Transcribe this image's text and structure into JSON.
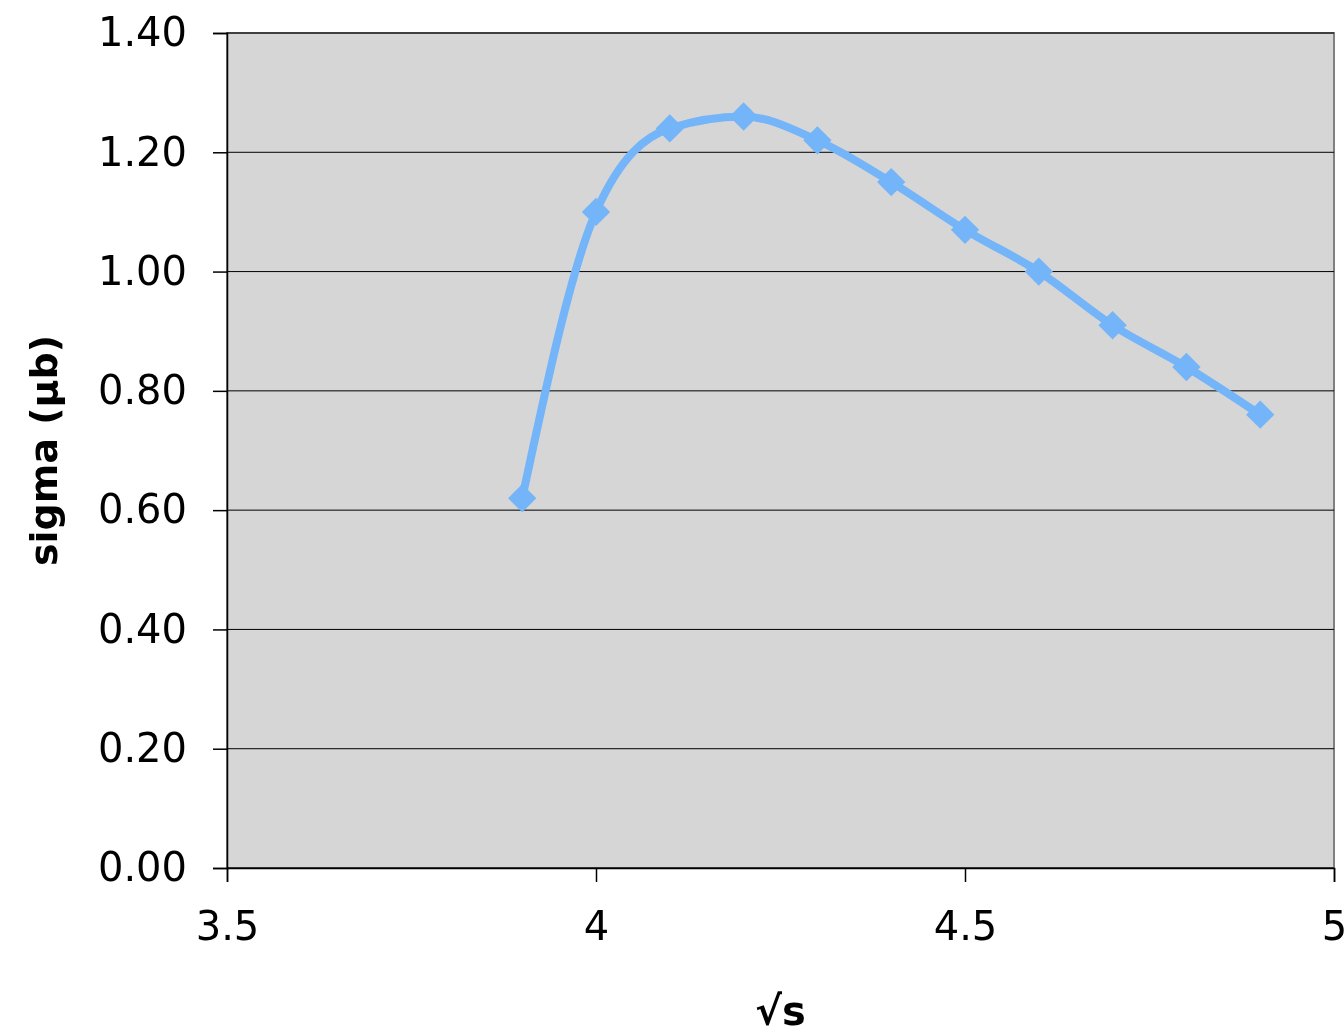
{
  "chart_data": {
    "type": "line",
    "xlabel": "√s",
    "ylabel": "sigma (μb)",
    "x": [
      3.9,
      4.0,
      4.1,
      4.2,
      4.3,
      4.4,
      4.5,
      4.6,
      4.7,
      4.8,
      4.9
    ],
    "series": [
      {
        "color": "#74b4f8",
        "values": [
          0.62,
          1.1,
          1.24,
          1.26,
          1.22,
          1.15,
          1.07,
          1.0,
          0.91,
          0.84,
          0.76
        ]
      }
    ],
    "xlim": [
      3.5,
      5
    ],
    "xticks": [
      3.5,
      4,
      4.5,
      5
    ],
    "ylim": [
      0,
      1.4
    ],
    "yticks": [
      {
        "value": 0,
        "label": "0.00"
      },
      {
        "value": 0.2,
        "label": "0.20"
      },
      {
        "value": 0.4,
        "label": "0.40"
      },
      {
        "value": 0.6,
        "label": "0.60"
      },
      {
        "value": 0.8,
        "label": "0.80"
      },
      {
        "value": 1.0,
        "label": "1.00"
      },
      {
        "value": 1.2,
        "label": "1.20"
      },
      {
        "value": 1.4,
        "label": "1.40"
      }
    ],
    "grid": "y",
    "marker": "diamond",
    "line_style": "solid"
  }
}
